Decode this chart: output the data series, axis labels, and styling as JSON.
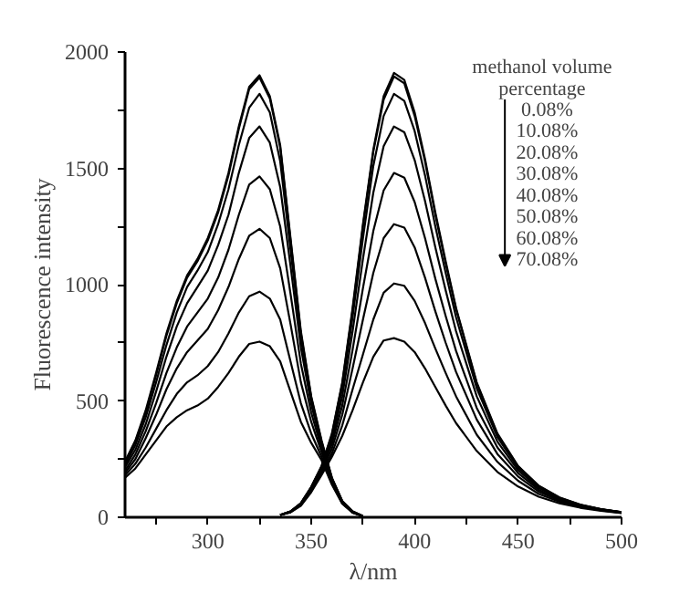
{
  "chart_data": {
    "type": "line",
    "xlabel": "λ/nm",
    "ylabel": "Fluorescence intensity",
    "legend_title": "methanol volume percentage",
    "legend": "top right",
    "grid": false,
    "line_style": "solid",
    "marker": "none",
    "xlim": [
      260,
      500
    ],
    "ylim": [
      0,
      2000
    ],
    "xticks": [
      {
        "value": 275,
        "label": null
      },
      300,
      {
        "value": 325,
        "label": null
      },
      350,
      {
        "value": 375,
        "label": null
      },
      400,
      {
        "value": 425,
        "label": null
      },
      450,
      {
        "value": 475,
        "label": null
      },
      500
    ],
    "yticks": [
      0,
      {
        "value": 250,
        "label": null
      },
      500,
      {
        "value": 750,
        "label": null
      },
      1000,
      {
        "value": 1250,
        "label": null
      },
      1500,
      {
        "value": 1750,
        "label": null
      },
      2000
    ],
    "series": [
      {
        "name": "0.08%",
        "color": "#000000",
        "x": [
          260,
          265,
          270,
          275,
          280,
          285,
          290,
          295,
          300,
          305,
          310,
          315,
          320,
          325,
          330,
          335,
          340,
          345,
          350,
          355,
          360,
          365,
          370,
          375
        ],
        "values": [
          240,
          330,
          460,
          620,
          790,
          930,
          1040,
          1110,
          1200,
          1320,
          1480,
          1680,
          1850,
          1900,
          1810,
          1600,
          1200,
          800,
          520,
          330,
          170,
          70,
          25,
          5
        ]
      },
      {
        "name": "10.08%",
        "color": "#000000",
        "x": [
          260,
          265,
          270,
          275,
          280,
          285,
          290,
          295,
          300,
          305,
          310,
          315,
          320,
          325,
          330,
          335,
          340,
          345,
          350,
          355,
          360,
          365,
          370,
          375
        ],
        "values": [
          235,
          325,
          450,
          610,
          780,
          920,
          1030,
          1100,
          1190,
          1310,
          1470,
          1670,
          1840,
          1890,
          1800,
          1590,
          1190,
          790,
          515,
          325,
          168,
          70,
          25,
          5
        ]
      },
      {
        "name": "20.08%",
        "color": "#000000",
        "x": [
          260,
          265,
          270,
          275,
          280,
          285,
          290,
          295,
          300,
          305,
          310,
          315,
          320,
          325,
          330,
          335,
          340,
          345,
          350,
          355,
          360,
          365,
          370,
          375
        ],
        "values": [
          225,
          310,
          430,
          580,
          740,
          880,
          990,
          1060,
          1140,
          1260,
          1410,
          1600,
          1760,
          1820,
          1740,
          1530,
          1150,
          770,
          505,
          320,
          165,
          68,
          24,
          5
        ]
      },
      {
        "name": "30.08%",
        "color": "#000000",
        "x": [
          260,
          265,
          270,
          275,
          280,
          285,
          290,
          295,
          300,
          305,
          310,
          315,
          320,
          325,
          330,
          335,
          340,
          345,
          350,
          355,
          360,
          365,
          370,
          375
        ],
        "values": [
          215,
          290,
          400,
          540,
          690,
          820,
          920,
          990,
          1060,
          1170,
          1300,
          1480,
          1630,
          1680,
          1610,
          1420,
          1080,
          730,
          485,
          310,
          160,
          66,
          23,
          5
        ]
      },
      {
        "name": "40.08%",
        "color": "#000000",
        "x": [
          260,
          265,
          270,
          275,
          280,
          285,
          290,
          295,
          300,
          305,
          310,
          315,
          320,
          325,
          330,
          335,
          340,
          345,
          350,
          355,
          360,
          365,
          370,
          375
        ],
        "values": [
          200,
          270,
          370,
          490,
          620,
          730,
          820,
          880,
          940,
          1030,
          1150,
          1300,
          1430,
          1465,
          1410,
          1250,
          960,
          660,
          450,
          295,
          155,
          64,
          22,
          5
        ]
      },
      {
        "name": "50.08%",
        "color": "#000000",
        "x": [
          260,
          265,
          270,
          275,
          280,
          285,
          290,
          295,
          300,
          305,
          310,
          315,
          320,
          325,
          330,
          335,
          340,
          345,
          350,
          355,
          360,
          365,
          370,
          375
        ],
        "values": [
          190,
          250,
          340,
          440,
          550,
          640,
          710,
          760,
          810,
          890,
          990,
          1110,
          1210,
          1240,
          1200,
          1070,
          830,
          580,
          410,
          280,
          150,
          62,
          21,
          5
        ]
      },
      {
        "name": "60.08%",
        "color": "#000000",
        "x": [
          260,
          265,
          270,
          275,
          280,
          285,
          290,
          295,
          300,
          305,
          310,
          315,
          320,
          325,
          330,
          335,
          340,
          345,
          350,
          355,
          360,
          365,
          370,
          375
        ],
        "values": [
          180,
          230,
          300,
          380,
          460,
          530,
          580,
          610,
          650,
          710,
          790,
          880,
          950,
          970,
          940,
          850,
          670,
          490,
          360,
          260,
          145,
          60,
          20,
          5
        ]
      },
      {
        "name": "70.08%",
        "color": "#000000",
        "x": [
          260,
          265,
          270,
          275,
          280,
          285,
          290,
          295,
          300,
          305,
          310,
          315,
          320,
          325,
          330,
          335,
          340,
          345,
          350,
          355,
          360,
          365,
          370,
          375
        ],
        "values": [
          170,
          210,
          270,
          330,
          390,
          430,
          460,
          480,
          510,
          560,
          620,
          690,
          745,
          755,
          735,
          670,
          540,
          410,
          320,
          245,
          140,
          58,
          20,
          5
        ]
      },
      {
        "color": "#000000",
        "x": [
          335,
          340,
          345,
          350,
          355,
          360,
          365,
          370,
          375,
          380,
          385,
          390,
          395,
          400,
          405,
          410,
          415,
          420,
          430,
          440,
          450,
          460,
          470,
          480,
          490,
          500
        ],
        "values": [
          10,
          25,
          60,
          130,
          220,
          360,
          580,
          900,
          1260,
          1580,
          1810,
          1910,
          1880,
          1740,
          1540,
          1310,
          1100,
          900,
          580,
          360,
          220,
          135,
          85,
          55,
          35,
          22
        ]
      },
      {
        "color": "#000000",
        "x": [
          335,
          340,
          345,
          350,
          355,
          360,
          365,
          370,
          375,
          380,
          385,
          390,
          395,
          400,
          405,
          410,
          415,
          420,
          430,
          440,
          450,
          460,
          470,
          480,
          490,
          500
        ],
        "values": [
          10,
          25,
          60,
          130,
          220,
          355,
          575,
          890,
          1250,
          1570,
          1795,
          1895,
          1865,
          1725,
          1530,
          1300,
          1090,
          895,
          575,
          355,
          218,
          134,
          84,
          54,
          35,
          22
        ]
      },
      {
        "color": "#000000",
        "x": [
          335,
          340,
          345,
          350,
          355,
          360,
          365,
          370,
          375,
          380,
          385,
          390,
          395,
          400,
          405,
          410,
          415,
          420,
          430,
          440,
          450,
          460,
          470,
          480,
          490,
          500
        ],
        "values": [
          10,
          25,
          60,
          128,
          215,
          345,
          555,
          860,
          1200,
          1510,
          1725,
          1820,
          1790,
          1660,
          1470,
          1250,
          1050,
          860,
          555,
          345,
          212,
          130,
          82,
          53,
          34,
          22
        ]
      },
      {
        "color": "#000000",
        "x": [
          335,
          340,
          345,
          350,
          355,
          360,
          365,
          370,
          375,
          380,
          385,
          390,
          395,
          400,
          405,
          410,
          415,
          420,
          430,
          440,
          450,
          460,
          470,
          480,
          490,
          500
        ],
        "values": [
          10,
          24,
          58,
          125,
          210,
          330,
          520,
          800,
          1110,
          1395,
          1595,
          1680,
          1655,
          1535,
          1360,
          1160,
          975,
          800,
          520,
          325,
          202,
          125,
          80,
          52,
          34,
          21
        ]
      },
      {
        "color": "#000000",
        "x": [
          335,
          340,
          345,
          350,
          355,
          360,
          365,
          370,
          375,
          380,
          385,
          390,
          395,
          400,
          405,
          410,
          415,
          420,
          430,
          440,
          450,
          460,
          470,
          480,
          490,
          500
        ],
        "values": [
          10,
          24,
          57,
          122,
          205,
          315,
          480,
          720,
          985,
          1230,
          1405,
          1480,
          1460,
          1355,
          1200,
          1025,
          865,
          715,
          470,
          300,
          190,
          118,
          76,
          50,
          33,
          21
        ]
      },
      {
        "color": "#000000",
        "x": [
          335,
          340,
          345,
          350,
          355,
          360,
          365,
          370,
          375,
          380,
          385,
          390,
          395,
          400,
          405,
          410,
          415,
          420,
          430,
          440,
          450,
          460,
          470,
          480,
          490,
          500
        ],
        "values": [
          10,
          23,
          55,
          118,
          198,
          295,
          440,
          640,
          850,
          1050,
          1200,
          1260,
          1245,
          1160,
          1030,
          885,
          750,
          625,
          420,
          272,
          175,
          110,
          72,
          48,
          32,
          20
        ]
      },
      {
        "color": "#000000",
        "x": [
          335,
          340,
          345,
          350,
          355,
          360,
          365,
          370,
          375,
          380,
          385,
          390,
          395,
          400,
          405,
          410,
          415,
          420,
          430,
          440,
          450,
          460,
          470,
          480,
          490,
          500
        ],
        "values": [
          10,
          22,
          52,
          112,
          190,
          275,
          395,
          550,
          700,
          850,
          965,
          1005,
          995,
          930,
          835,
          725,
          620,
          520,
          355,
          238,
          157,
          100,
          67,
          45,
          30,
          19
        ]
      },
      {
        "color": "#000000",
        "x": [
          335,
          340,
          345,
          350,
          355,
          360,
          365,
          370,
          375,
          380,
          385,
          390,
          395,
          400,
          405,
          410,
          415,
          420,
          430,
          440,
          450,
          460,
          470,
          480,
          490,
          500
        ],
        "values": [
          10,
          21,
          50,
          108,
          182,
          260,
          350,
          460,
          580,
          690,
          760,
          770,
          755,
          710,
          640,
          560,
          480,
          405,
          285,
          195,
          132,
          88,
          60,
          41,
          28,
          18
        ]
      }
    ]
  }
}
